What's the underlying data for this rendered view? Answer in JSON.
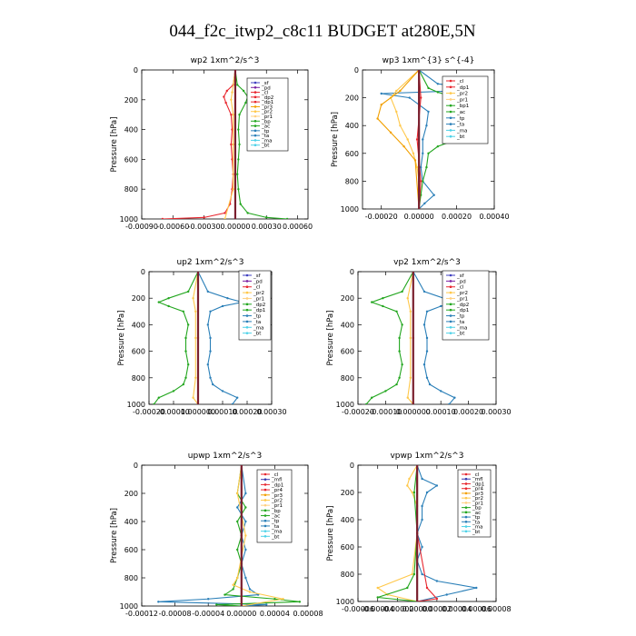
{
  "figure": {
    "title": "044_f2c_itwp2_c8c11  BUDGET at280E,5N"
  },
  "colors": {
    "sf": "#4040c0",
    "pd": "#7a1fa2",
    "cl": "#e8262e",
    "dp2": "#e8262e",
    "dp1": "#e8262e",
    "pr3": "#f2a000",
    "pr2": "#ffc84a",
    "pr1": "#ffd080",
    "bp": "#22a61e",
    "ac": "#22a61e",
    "tp": "#2a7fb8",
    "ta": "#2a7fb8",
    "ma": "#4dd2e8",
    "bt": "#4dd2e8",
    "mfl": "#3a3ab0",
    "pr4": "#e8262e"
  },
  "chart_data": [
    {
      "type": "line",
      "title": "wp2   1xm^2/s^3",
      "ylabel": "Pressure  [hPa]",
      "ylim": [
        1000,
        0
      ],
      "xlim": [
        -0.0009,
        0.0007
      ],
      "xticks": [
        -0.0009,
        -0.0006,
        -0.0003,
        0.0,
        0.0003,
        0.0006
      ],
      "xtick_labels": [
        "-0.00090",
        "-0.00060",
        "-0.00030",
        "0.00000",
        "0.00030",
        "0.00060"
      ],
      "yticks": [
        0,
        200,
        400,
        600,
        800,
        1000
      ],
      "ytick_labels": [
        "0",
        "200",
        "400",
        "600",
        "800",
        "1000"
      ],
      "legend": [
        "_sf",
        "_pd",
        "_cl",
        "_dp2",
        "_dp1",
        "_pr3",
        "_pr2",
        "_pr1",
        "_bp",
        "_ac",
        "_tp",
        "_ta",
        "_ma",
        "_bt"
      ],
      "legend_colors": [
        "#4040c0",
        "#7a1fa2",
        "#e8262e",
        "#e8262e",
        "#e8262e",
        "#f2a000",
        "#ffc84a",
        "#ffd080",
        "#22a61e",
        "#22a61e",
        "#2a7fb8",
        "#2a7fb8",
        "#4dd2e8",
        "#4dd2e8"
      ],
      "series": [
        {
          "color": "#22a61e",
          "y": [
            0,
            100,
            140,
            180,
            220,
            300,
            400,
            500,
            600,
            700,
            800,
            900,
            960,
            990,
            1000
          ],
          "x": [
            0,
            2e-05,
            8e-05,
            0.00012,
            0.0001,
            4e-05,
            3e-05,
            4e-05,
            3e-05,
            2e-05,
            3e-05,
            5e-05,
            0.00012,
            0.0003,
            0.0005
          ]
        },
        {
          "color": "#e8262e",
          "y": [
            0,
            100,
            140,
            180,
            220,
            300,
            400,
            500,
            600,
            700,
            800,
            900,
            960,
            990,
            1000
          ],
          "x": [
            0,
            -2e-05,
            -8e-05,
            -0.00011,
            -9e-05,
            -4e-05,
            -3e-05,
            -4e-05,
            -3e-05,
            -2e-05,
            -3e-05,
            -5e-05,
            -0.0001,
            -0.0003,
            -0.0007
          ]
        },
        {
          "color": "#ffc84a",
          "y": [
            0,
            150,
            200,
            300,
            500,
            800,
            1000
          ],
          "x": [
            0,
            -3e-05,
            -4e-05,
            -2e-05,
            -2e-05,
            -2e-05,
            -0.0001
          ]
        },
        {
          "color": "#7a1fa2",
          "y": [
            0,
            500,
            1000
          ],
          "x": [
            0,
            0,
            0
          ]
        }
      ]
    },
    {
      "type": "line",
      "title": "wp3   1xm^{3} s^{-4}",
      "ylabel": "Pressure  [hPa]",
      "ylim": [
        1000,
        0
      ],
      "xlim": [
        -0.0003,
        0.0004
      ],
      "xticks": [
        -0.0002,
        0.0,
        0.0002,
        0.0004
      ],
      "xtick_labels": [
        "-0.00020",
        "0.00000",
        "0.00020",
        "0.00040"
      ],
      "yticks": [
        0,
        200,
        400,
        600,
        800,
        1000
      ],
      "ytick_labels": [
        "0",
        "200",
        "400",
        "600",
        "800",
        "1000"
      ],
      "legend": [
        "_cl",
        "_dp1",
        "_pr2",
        "_pr1",
        "_bp1",
        "_ac",
        "_tp",
        "_ta",
        "_ma",
        "_bt"
      ],
      "legend_colors": [
        "#e8262e",
        "#e8262e",
        "#ffc84a",
        "#ffd080",
        "#22a61e",
        "#22a61e",
        "#2a7fb8",
        "#2a7fb8",
        "#4dd2e8",
        "#4dd2e8"
      ],
      "series": [
        {
          "color": "#2a7fb8",
          "y": [
            0,
            100,
            130,
            150,
            170,
            200,
            300,
            400,
            500,
            600,
            700,
            800,
            900,
            960,
            1000
          ],
          "x": [
            0,
            0.0001,
            0.0003,
            0.0002,
            -0.0002,
            -5e-05,
            5e-05,
            4e-05,
            2e-05,
            2e-05,
            1e-05,
            2e-05,
            8e-05,
            3e-05,
            0
          ]
        },
        {
          "color": "#22a61e",
          "y": [
            0,
            130,
            160,
            200,
            300,
            400,
            500,
            550,
            600,
            700,
            800,
            900,
            1000
          ],
          "x": [
            0,
            5e-05,
            0.0001,
            0.0002,
            0.0002,
            0.0002,
            0.0002,
            0.0001,
            5e-05,
            4e-05,
            2e-05,
            1e-05,
            0
          ]
        },
        {
          "color": "#ffc84a",
          "y": [
            0,
            150,
            200,
            300,
            400,
            500,
            600,
            700,
            800,
            1000
          ],
          "x": [
            0,
            -0.00012,
            -0.00015,
            -0.00012,
            -0.0001,
            -6e-05,
            -3e-05,
            -1e-05,
            0,
            0
          ]
        },
        {
          "color": "#f2a000",
          "y": [
            0,
            150,
            250,
            350,
            450,
            550,
            650,
            1000
          ],
          "x": [
            0,
            -0.0001,
            -0.0002,
            -0.00022,
            -0.00015,
            -8e-05,
            -2e-05,
            0
          ]
        },
        {
          "color": "#e8262e",
          "y": [
            0,
            200,
            500,
            800,
            1000
          ],
          "x": [
            0,
            1e-05,
            -1e-05,
            1e-05,
            0
          ]
        }
      ]
    },
    {
      "type": "line",
      "title": "up2   1xm^2/s^3",
      "ylabel": "Pressure  [hPa]",
      "ylim": [
        1000,
        0
      ],
      "xlim": [
        -0.0002,
        0.0003
      ],
      "xticks": [
        -0.0002,
        -0.0001,
        0.0,
        0.0001,
        0.0002,
        0.0003
      ],
      "xtick_labels": [
        "-0.00020",
        "-0.00010",
        "0.000000",
        "0.00010",
        "0.00020",
        "0.00030"
      ],
      "yticks": [
        0,
        200,
        400,
        600,
        800,
        1000
      ],
      "ytick_labels": [
        "0",
        "200",
        "400",
        "600",
        "800",
        "1000"
      ],
      "legend": [
        "_sf",
        "_pd",
        "_cl",
        "_pr2",
        "_pr1",
        "_dp2",
        "_dp1",
        "_tp",
        "_ta",
        "_ma",
        "_bt"
      ],
      "legend_colors": [
        "#4040c0",
        "#7a1fa2",
        "#e8262e",
        "#ffc84a",
        "#ffd080",
        "#22a61e",
        "#22a61e",
        "#2a7fb8",
        "#2a7fb8",
        "#4dd2e8",
        "#4dd2e8"
      ],
      "series": [
        {
          "color": "#22a61e",
          "y": [
            0,
            150,
            200,
            230,
            260,
            300,
            400,
            500,
            600,
            700,
            800,
            850,
            900,
            950,
            1000
          ],
          "x": [
            0,
            -4e-05,
            -0.00012,
            -0.00016,
            -0.00012,
            -6e-05,
            -4e-05,
            -5e-05,
            -5e-05,
            -4e-05,
            -5e-05,
            -6e-05,
            -0.0001,
            -0.00016,
            -0.00018
          ]
        },
        {
          "color": "#2a7fb8",
          "y": [
            0,
            150,
            200,
            230,
            260,
            300,
            400,
            500,
            600,
            700,
            800,
            850,
            900,
            950,
            1000
          ],
          "x": [
            0,
            4e-05,
            0.00012,
            0.00018,
            0.0001,
            5e-05,
            4e-05,
            5e-05,
            5e-05,
            4e-05,
            5e-05,
            6e-05,
            0.0001,
            0.00016,
            0.00014
          ]
        },
        {
          "color": "#ffc84a",
          "y": [
            0,
            200,
            300,
            500,
            800,
            950,
            1000
          ],
          "x": [
            0,
            -2e-05,
            -1e-05,
            -1e-05,
            -1e-05,
            -2e-05,
            0
          ]
        },
        {
          "color": "#e8262e",
          "y": [
            0,
            500,
            1000
          ],
          "x": [
            0,
            0,
            0
          ]
        }
      ]
    },
    {
      "type": "line",
      "title": "vp2   1xm^2/s^3",
      "ylabel": "Pressure  [hPa]",
      "ylim": [
        1000,
        0
      ],
      "xlim": [
        -0.0002,
        0.0003
      ],
      "xticks": [
        -0.0002,
        -0.0001,
        0.0,
        0.0001,
        0.0002,
        0.0003
      ],
      "xtick_labels": [
        "-0.00020",
        "-0.00010",
        "0.000000",
        "0.00010",
        "0.00020",
        "0.00030"
      ],
      "yticks": [
        0,
        200,
        400,
        600,
        800,
        1000
      ],
      "ytick_labels": [
        "0",
        "200",
        "400",
        "600",
        "800",
        "1000"
      ],
      "legend": [
        "_sf",
        "_pd",
        "_cl",
        "_pr2",
        "_pr1",
        "_dp2",
        "_dp1",
        "_tp",
        "_ta",
        "_ma",
        "_bt"
      ],
      "legend_colors": [
        "#4040c0",
        "#7a1fa2",
        "#e8262e",
        "#ffc84a",
        "#ffd080",
        "#22a61e",
        "#22a61e",
        "#2a7fb8",
        "#2a7fb8",
        "#4dd2e8",
        "#4dd2e8"
      ],
      "series": [
        {
          "color": "#22a61e",
          "y": [
            0,
            150,
            200,
            230,
            260,
            300,
            400,
            500,
            600,
            700,
            800,
            850,
            900,
            950,
            1000
          ],
          "x": [
            0,
            -4e-05,
            -0.00011,
            -0.00015,
            -0.00011,
            -6e-05,
            -4e-05,
            -5e-05,
            -5e-05,
            -4e-05,
            -5e-05,
            -6e-05,
            -0.0001,
            -0.00015,
            -0.00017
          ]
        },
        {
          "color": "#2a7fb8",
          "y": [
            0,
            150,
            200,
            230,
            260,
            300,
            400,
            500,
            600,
            700,
            800,
            850,
            900,
            950,
            1000
          ],
          "x": [
            0,
            4e-05,
            0.00011,
            0.00015,
            0.0001,
            5e-05,
            4e-05,
            5e-05,
            5e-05,
            4e-05,
            5e-05,
            6e-05,
            0.0001,
            0.00015,
            0.00013
          ]
        },
        {
          "color": "#ffc84a",
          "y": [
            0,
            200,
            300,
            500,
            800,
            950,
            1000
          ],
          "x": [
            0,
            -2e-05,
            -1e-05,
            -1e-05,
            -1e-05,
            -2e-05,
            0
          ]
        },
        {
          "color": "#e8262e",
          "y": [
            0,
            500,
            1000
          ],
          "x": [
            0,
            0,
            0
          ]
        }
      ]
    },
    {
      "type": "line",
      "title": "upwp   1xm^2/s^3",
      "ylabel": "Pressure  [hPa]",
      "ylim": [
        1000,
        0
      ],
      "xlim": [
        -0.00012,
        8e-05
      ],
      "xticks": [
        -0.00012,
        -8e-05,
        -4e-05,
        0.0,
        4e-05,
        8e-05
      ],
      "xtick_labels": [
        "-0.00012",
        "-0.00008",
        "-0.00004",
        "0.00000",
        "0.00004",
        "0.00008"
      ],
      "yticks": [
        0,
        200,
        400,
        600,
        800,
        1000
      ],
      "ytick_labels": [
        "0",
        "200",
        "400",
        "600",
        "800",
        "1000"
      ],
      "legend": [
        "_cl",
        "_mfl",
        "_dp1",
        "_pr4",
        "_pr3",
        "_pr2",
        "_pr1",
        "_bp",
        "_ac",
        "_tp",
        "_ta",
        "_ma",
        "_bt"
      ],
      "legend_colors": [
        "#e8262e",
        "#3a3ab0",
        "#e8262e",
        "#e8262e",
        "#f2a000",
        "#ffc84a",
        "#ffd080",
        "#22a61e",
        "#22a61e",
        "#2a7fb8",
        "#2a7fb8",
        "#4dd2e8",
        "#4dd2e8"
      ],
      "series": [
        {
          "color": "#2a7fb8",
          "y": [
            0,
            200,
            300,
            400,
            500,
            600,
            700,
            800,
            880,
            920,
            950,
            970,
            990,
            1000
          ],
          "x": [
            0,
            5e-06,
            -5e-06,
            5e-06,
            0,
            5e-06,
            0,
            5e-06,
            1e-05,
            2e-05,
            -4e-05,
            -0.0001,
            3e-05,
            0
          ]
        },
        {
          "color": "#22a61e",
          "y": [
            0,
            200,
            300,
            400,
            500,
            600,
            700,
            800,
            880,
            920,
            950,
            970,
            990,
            1000
          ],
          "x": [
            0,
            -5e-06,
            5e-06,
            -5e-06,
            0,
            -5e-06,
            0,
            -5e-06,
            -1e-05,
            -2e-05,
            4e-05,
            7e-05,
            -3e-05,
            0
          ]
        },
        {
          "color": "#ffc84a",
          "y": [
            0,
            200,
            500,
            800,
            850,
            900,
            950,
            1000
          ],
          "x": [
            0,
            -5e-06,
            5e-06,
            -5e-06,
            -1e-05,
            1e-05,
            5e-05,
            0
          ]
        },
        {
          "color": "#7a1fa2",
          "y": [
            0,
            500,
            1000
          ],
          "x": [
            0,
            0,
            0
          ]
        }
      ]
    },
    {
      "type": "line",
      "title": "vpwp   1xm^2/s^3",
      "ylabel": "Pressure  [hPa]",
      "ylim": [
        1000,
        0
      ],
      "xlim": [
        -6e-05,
        8e-05
      ],
      "xticks": [
        -6e-05,
        -4e-05,
        -2e-05,
        0.0,
        2e-05,
        4e-05,
        6e-05,
        8e-05
      ],
      "xtick_labels": [
        "-0.00006",
        "-0.00004",
        "-0.00002",
        "0.00000",
        "0.00002",
        "0.00004",
        "0.00006",
        "0.00008"
      ],
      "yticks": [
        0,
        200,
        400,
        600,
        800,
        1000
      ],
      "ytick_labels": [
        "0",
        "200",
        "400",
        "600",
        "800",
        "1000"
      ],
      "legend": [
        "_cl",
        "_mfl",
        "_dp1",
        "_pr4",
        "_pr3",
        "_pr2",
        "_pr1",
        "_bp",
        "_ac",
        "_tp",
        "_ta",
        "_ma",
        "_bt"
      ],
      "legend_colors": [
        "#e8262e",
        "#3a3ab0",
        "#e8262e",
        "#e8262e",
        "#f2a000",
        "#ffc84a",
        "#ffd080",
        "#22a61e",
        "#22a61e",
        "#2a7fb8",
        "#2a7fb8",
        "#4dd2e8",
        "#4dd2e8"
      ],
      "series": [
        {
          "color": "#2a7fb8",
          "y": [
            0,
            100,
            150,
            200,
            300,
            400,
            500,
            600,
            700,
            800,
            850,
            900,
            950,
            1000
          ],
          "x": [
            0,
            5e-06,
            2e-05,
            1e-05,
            5e-06,
            5e-06,
            0,
            5e-06,
            0,
            5e-06,
            2e-05,
            6e-05,
            3e-05,
            0
          ]
        },
        {
          "color": "#ffc84a",
          "y": [
            0,
            100,
            150,
            200,
            300,
            500,
            800,
            900,
            950,
            1000
          ],
          "x": [
            0,
            -8e-06,
            -1e-05,
            -5e-06,
            0,
            0,
            -5e-06,
            -4e-05,
            -3e-05,
            0
          ]
        },
        {
          "color": "#22a61e",
          "y": [
            0,
            200,
            500,
            800,
            900,
            970,
            1000
          ],
          "x": [
            0,
            -3e-06,
            0,
            -3e-06,
            -1e-05,
            -4e-05,
            0
          ]
        },
        {
          "color": "#e8262e",
          "y": [
            0,
            500,
            900,
            980,
            1000
          ],
          "x": [
            0,
            0,
            1e-05,
            2e-05,
            0
          ]
        }
      ]
    }
  ]
}
